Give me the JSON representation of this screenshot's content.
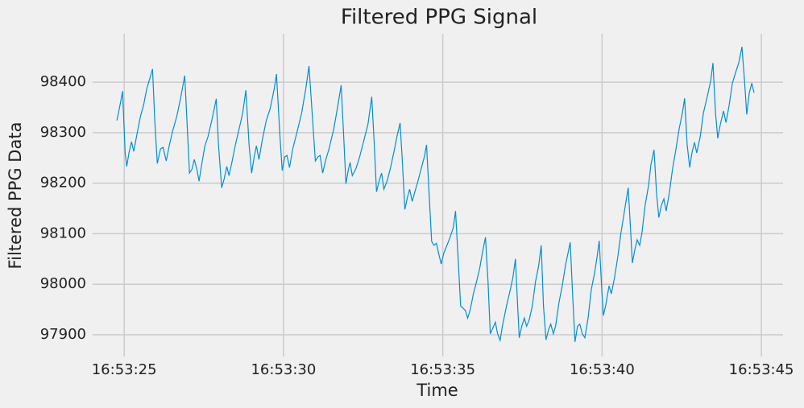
{
  "chart_data": {
    "type": "line",
    "title": "Filtered PPG Signal",
    "xlabel": "Time",
    "ylabel": "Filtered PPG Data",
    "xlim": [
      24.01,
      45.68
    ],
    "ylim": [
      97857,
      98518
    ],
    "xticks": [
      {
        "value": 25,
        "label": "16:53:25"
      },
      {
        "value": 30,
        "label": "16:53:30"
      },
      {
        "value": 35,
        "label": "16:53:35"
      },
      {
        "value": 40,
        "label": "16:53:40"
      },
      {
        "value": 45,
        "label": "16:53:45"
      }
    ],
    "yticks": [
      97900,
      98000,
      98100,
      98200,
      98300,
      98400
    ],
    "grid": true,
    "x": [
      24.77,
      24.87,
      24.95,
      25.03,
      25.08,
      25.15,
      25.23,
      25.3,
      25.41,
      25.51,
      25.61,
      25.71,
      25.89,
      25.96,
      26.04,
      26.14,
      26.22,
      26.32,
      26.42,
      26.52,
      26.65,
      26.77,
      26.9,
      26.97,
      27.05,
      27.13,
      27.2,
      27.28,
      27.35,
      27.43,
      27.53,
      27.63,
      27.76,
      27.89,
      27.96,
      28.06,
      28.14,
      28.22,
      28.29,
      28.39,
      28.49,
      28.62,
      28.72,
      28.82,
      28.92,
      29.0,
      29.08,
      29.15,
      29.23,
      29.33,
      29.46,
      29.58,
      29.71,
      29.78,
      29.89,
      29.96,
      30.04,
      30.11,
      30.19,
      30.29,
      30.42,
      30.57,
      30.7,
      30.8,
      30.9,
      31.0,
      31.08,
      31.15,
      31.23,
      31.33,
      31.43,
      31.58,
      31.71,
      31.81,
      31.89,
      31.96,
      32.04,
      32.09,
      32.16,
      32.27,
      32.39,
      32.52,
      32.65,
      32.77,
      32.85,
      32.92,
      33.0,
      33.08,
      33.15,
      33.25,
      33.35,
      33.46,
      33.56,
      33.66,
      33.73,
      33.81,
      33.89,
      33.96,
      34.04,
      34.11,
      34.22,
      34.32,
      34.42,
      34.49,
      34.57,
      34.65,
      34.72,
      34.8,
      34.87,
      34.95,
      35.03,
      35.13,
      35.23,
      35.33,
      35.4,
      35.48,
      35.56,
      35.63,
      35.71,
      35.78,
      35.86,
      35.96,
      36.06,
      36.16,
      36.24,
      36.34,
      36.42,
      36.49,
      36.57,
      36.65,
      36.72,
      36.8,
      36.87,
      37.0,
      37.1,
      37.2,
      37.28,
      37.35,
      37.4,
      37.48,
      37.56,
      37.63,
      37.71,
      37.81,
      37.91,
      38.01,
      38.09,
      38.16,
      38.24,
      38.32,
      38.39,
      38.47,
      38.54,
      38.65,
      38.75,
      38.85,
      39.0,
      39.08,
      39.15,
      39.23,
      39.3,
      39.38,
      39.46,
      39.56,
      39.66,
      39.76,
      39.84,
      39.91,
      39.99,
      40.04,
      40.11,
      40.22,
      40.29,
      40.39,
      40.49,
      40.59,
      40.67,
      40.75,
      40.82,
      40.9,
      40.95,
      41.03,
      41.1,
      41.18,
      41.25,
      41.35,
      41.46,
      41.53,
      41.63,
      41.71,
      41.78,
      41.86,
      41.94,
      42.01,
      42.11,
      42.21,
      42.32,
      42.42,
      42.52,
      42.59,
      42.67,
      42.75,
      42.82,
      42.9,
      42.97,
      43.08,
      43.18,
      43.3,
      43.41,
      43.48,
      43.56,
      43.63,
      43.71,
      43.81,
      43.89,
      43.99,
      44.09,
      44.19,
      44.29,
      44.39,
      44.47,
      44.54,
      44.62,
      44.7,
      44.77
    ],
    "series": [
      {
        "color": "#008fd5",
        "values": [
          98324,
          98355,
          98382,
          98260,
          98233,
          98260,
          98282,
          98263,
          98300,
          98332,
          98355,
          98387,
          98426,
          98324,
          98239,
          98268,
          98271,
          98244,
          98276,
          98303,
          98332,
          98368,
          98413,
          98324,
          98220,
          98228,
          98247,
          98228,
          98204,
          98236,
          98273,
          98292,
          98327,
          98367,
          98276,
          98191,
          98209,
          98233,
          98215,
          98244,
          98276,
          98311,
          98339,
          98384,
          98276,
          98220,
          98252,
          98274,
          98247,
          98284,
          98324,
          98347,
          98387,
          98416,
          98292,
          98225,
          98252,
          98255,
          98231,
          98268,
          98300,
          98339,
          98387,
          98432,
          98339,
          98244,
          98252,
          98255,
          98220,
          98247,
          98268,
          98308,
          98355,
          98394,
          98292,
          98199,
          98228,
          98241,
          98215,
          98228,
          98252,
          98284,
          98316,
          98371,
          98276,
          98183,
          98204,
          98220,
          98188,
          98204,
          98228,
          98260,
          98292,
          98319,
          98244,
          98148,
          98172,
          98188,
          98164,
          98180,
          98204,
          98228,
          98252,
          98276,
          98180,
          98085,
          98077,
          98081,
          98061,
          98040,
          98061,
          98077,
          98093,
          98112,
          98145,
          98053,
          97957,
          97953,
          97948,
          97933,
          97949,
          97981,
          98005,
          98032,
          98061,
          98093,
          98005,
          97902,
          97913,
          97925,
          97902,
          97889,
          97917,
          97957,
          97984,
          98013,
          98050,
          97957,
          97894,
          97917,
          97933,
          97917,
          97929,
          97957,
          98005,
          98037,
          98077,
          97957,
          97890,
          97910,
          97921,
          97902,
          97917,
          97965,
          97997,
          98037,
          98083,
          97973,
          97886,
          97917,
          97921,
          97902,
          97894,
          97933,
          97989,
          98021,
          98053,
          98086,
          97989,
          97938,
          97957,
          97997,
          97981,
          98013,
          98053,
          98101,
          98132,
          98164,
          98191,
          98101,
          98042,
          98069,
          98088,
          98077,
          98101,
          98156,
          98196,
          98236,
          98266,
          98180,
          98132,
          98156,
          98169,
          98145,
          98180,
          98228,
          98268,
          98308,
          98339,
          98368,
          98276,
          98231,
          98260,
          98281,
          98260,
          98292,
          98339,
          98371,
          98403,
          98438,
          98339,
          98289,
          98316,
          98343,
          98320,
          98355,
          98398,
          98419,
          98438,
          98470,
          98403,
          98336,
          98379,
          98398,
          98379
        ]
      }
    ]
  }
}
